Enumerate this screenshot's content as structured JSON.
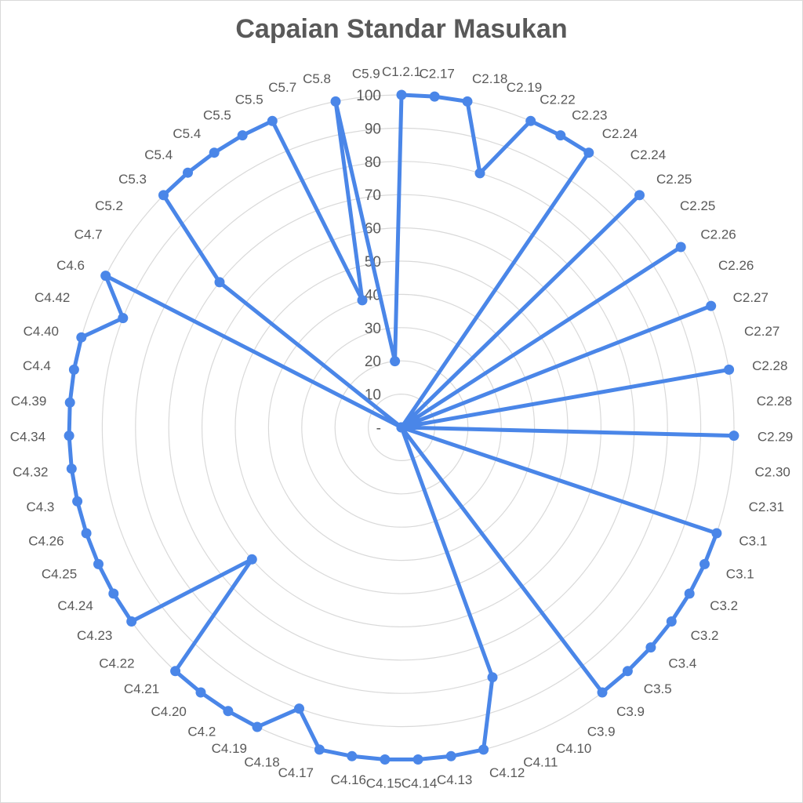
{
  "chart_data": {
    "type": "radar",
    "title": "Capaian Standar Masukan",
    "rlim": [
      0,
      100
    ],
    "ticks": [
      "-",
      "10",
      "20",
      "30",
      "40",
      "50",
      "60",
      "70",
      "80",
      "90",
      "100"
    ],
    "grid": true,
    "series_color": "#4a86e8",
    "categories": [
      "C1.2.1",
      "C2.17",
      "C2.18",
      "C2.19",
      "C2.22",
      "C2.23",
      "C2.24",
      "C2.24",
      "C2.25",
      "C2.25",
      "C2.26",
      "C2.26",
      "C2.27",
      "C2.27",
      "C2.28",
      "C2.28",
      "C2.29",
      "C2.30",
      "C2.31",
      "C3.1",
      "C3.1",
      "C3.2",
      "C3.2",
      "C3.4",
      "C3.5",
      "C3.9",
      "C3.9",
      "C4.10",
      "C4.11",
      "C4.12",
      "C4.13",
      "C4.14",
      "C4.15",
      "C4.16",
      "C4.17",
      "C4.18",
      "C4.19",
      "C4.2",
      "C4.20",
      "C4.21",
      "C4.22",
      "C4.23",
      "C4.24",
      "C4.25",
      "C4.26",
      "C4.3",
      "C4.32",
      "C4.34",
      "C4.39",
      "C4.4",
      "C4.40",
      "C4.42",
      "C4.6",
      "C4.7",
      "C5.2",
      "C5.3",
      "C5.4",
      "C5.4",
      "C5.5",
      "C5.5",
      "C5.7",
      "C5.8",
      "C5.9"
    ],
    "values": [
      100,
      100,
      100,
      80,
      100,
      100,
      100,
      0,
      100,
      0,
      100,
      0,
      100,
      0,
      100,
      0,
      100,
      0,
      0,
      100,
      100,
      100,
      100,
      100,
      100,
      100,
      0,
      0,
      80,
      100,
      100,
      100,
      100,
      100,
      100,
      90,
      100,
      100,
      100,
      100,
      60,
      100,
      100,
      100,
      100,
      100,
      100,
      100,
      100,
      100,
      100,
      90,
      100,
      0,
      70,
      100,
      100,
      100,
      100,
      100,
      40,
      100,
      20
    ]
  }
}
